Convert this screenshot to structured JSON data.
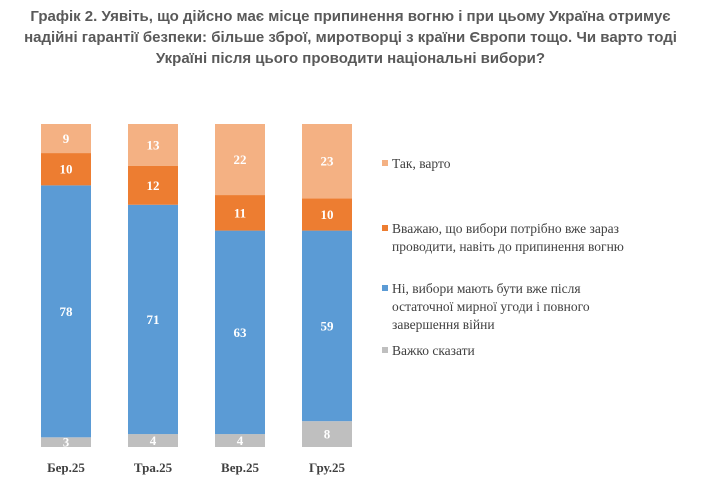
{
  "chart_data": {
    "type": "bar",
    "stacked": true,
    "title": "Графік 2. Уявіть, що дійсно має місце припинення вогню і при цьому Україна отримує надійні гарантії безпеки: більше зброї, миротворці з країни Європи тощо. Чи варто тоді Україні після цього проводити національні вибори?",
    "categories": [
      "Бер.25",
      "Тра.25",
      "Вер.25",
      "Гру.25"
    ],
    "series": [
      {
        "name": "Важко сказати",
        "values": [
          3,
          4,
          4,
          8
        ],
        "color": "#bfbfbf"
      },
      {
        "name": "Ні, вибори мають бути вже після остаточної мирної угоди і повного завершення війни",
        "values": [
          78,
          71,
          63,
          59
        ],
        "color": "#5b9bd5"
      },
      {
        "name": "Вважаю, що вибори потрібно вже зараз проводити, навіть до припинення вогню",
        "values": [
          10,
          12,
          11,
          10
        ],
        "color": "#ed7d31"
      },
      {
        "name": "Так, варто",
        "values": [
          9,
          13,
          22,
          23
        ],
        "color": "#f4b183"
      }
    ],
    "legend_order": [
      3,
      2,
      1,
      0
    ],
    "legend_position": "right",
    "grid": false,
    "ylim": [
      0,
      100
    ]
  }
}
